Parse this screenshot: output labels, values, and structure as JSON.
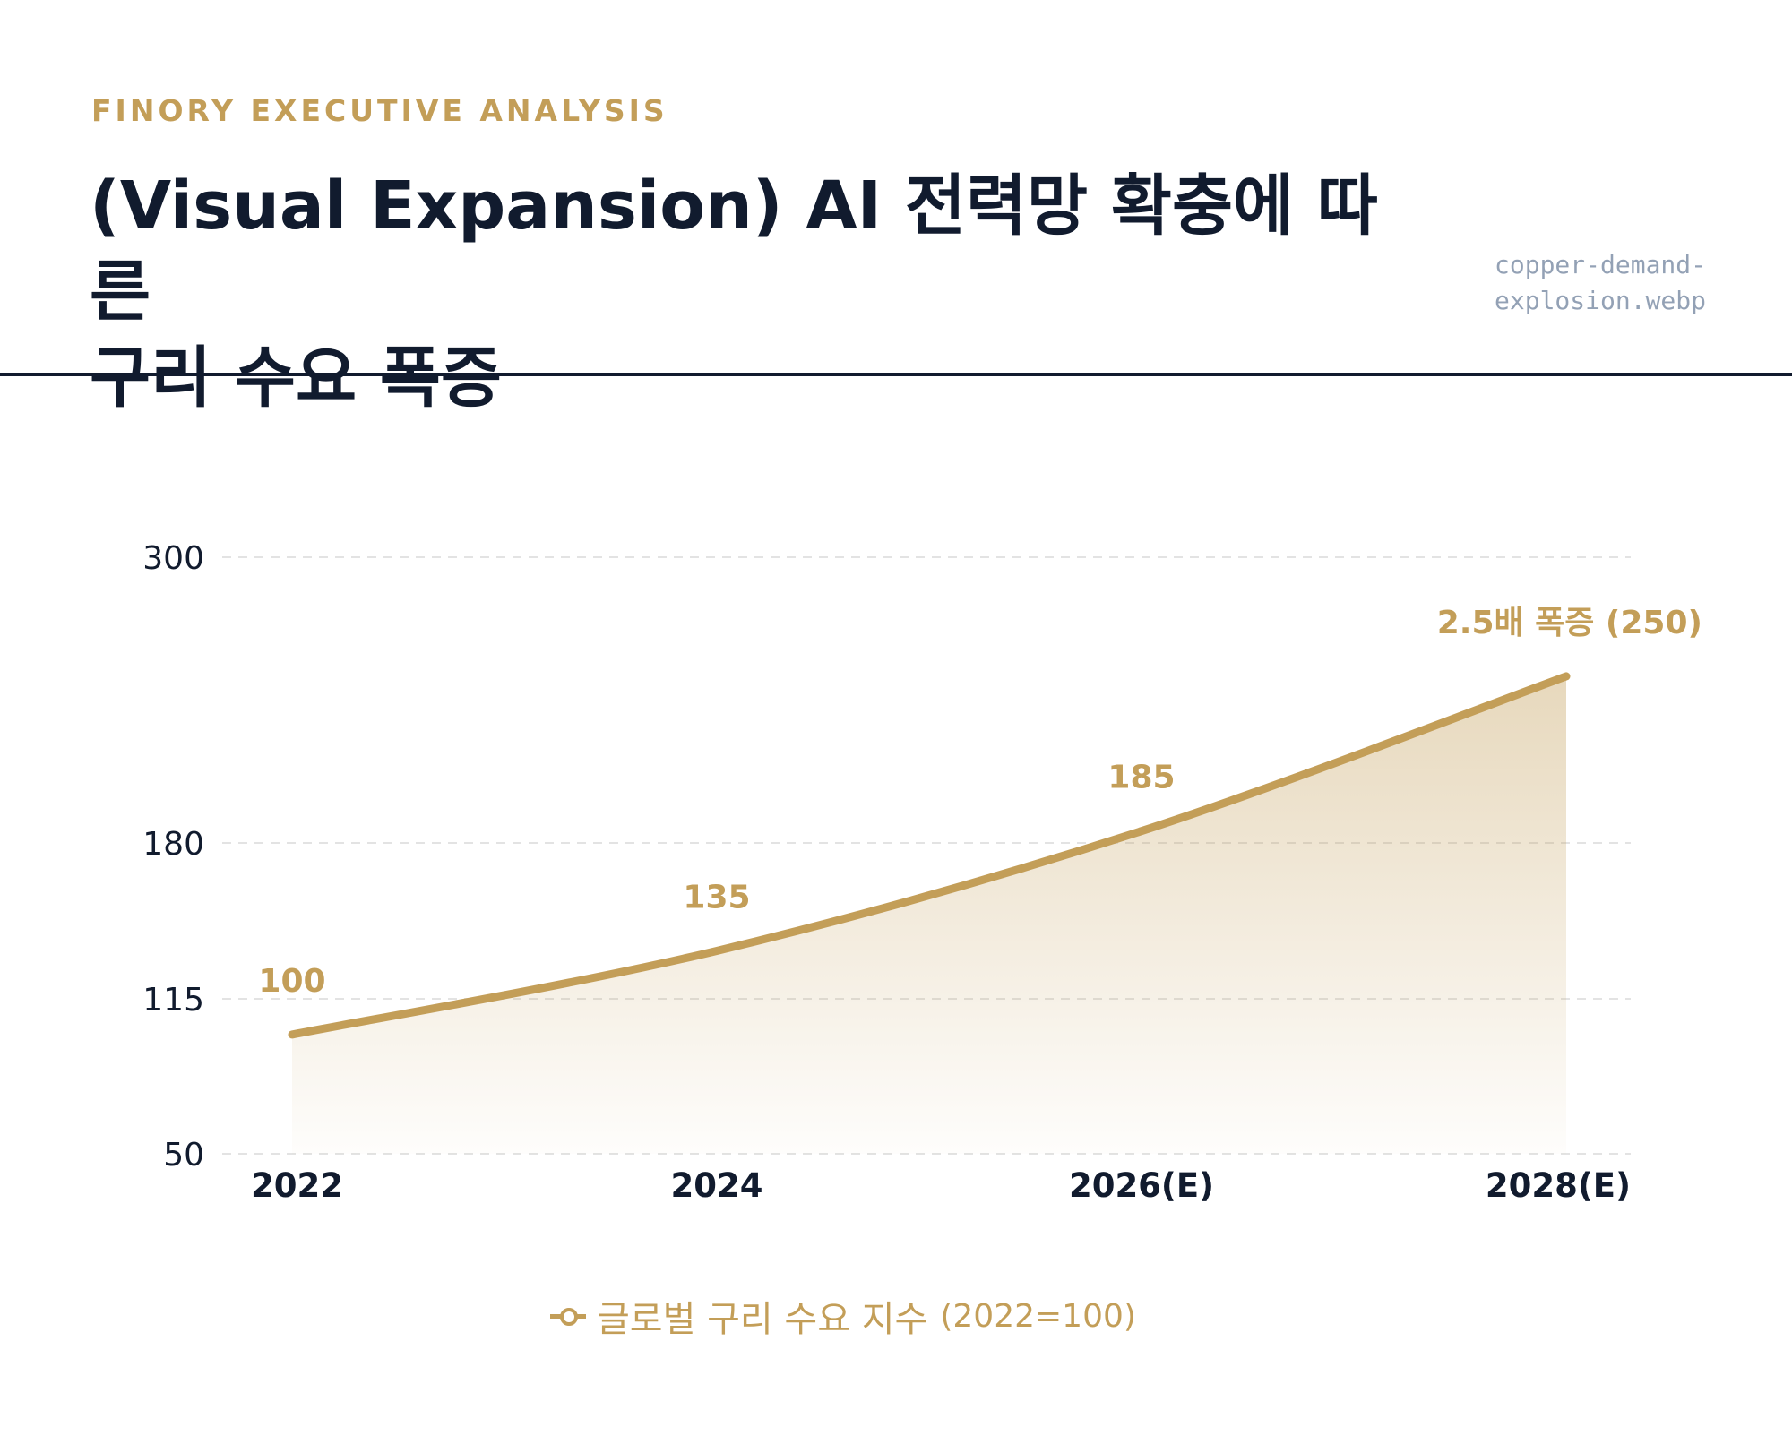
{
  "header": {
    "kicker": "FINORY EXECUTIVE ANALYSIS",
    "title_line1": "(Visual Expansion) AI 전력망 확충에 따른",
    "title_line2": "구리 수요 폭증",
    "filename_line1": "copper-demand-",
    "filename_line2": "explosion.webp"
  },
  "colors": {
    "accent": "#c39e58",
    "title": "#111b2e",
    "muted": "#93a1b5",
    "grid": "#e3e3e3"
  },
  "chart_data": {
    "type": "area",
    "categories": [
      "2022",
      "2024",
      "2026(E)",
      "2028(E)"
    ],
    "series": [
      {
        "name": "글로벌 구리 수요 지수 (2022=100)",
        "values": [
          100,
          135,
          185,
          250
        ],
        "data_labels": [
          "100",
          "135",
          "185",
          "2.5배 폭증 (250)"
        ]
      }
    ],
    "y_ticks": [
      50,
      115,
      180,
      300
    ],
    "ylim": [
      50,
      300
    ],
    "grid": true,
    "legend_position": "bottom-center"
  },
  "legend": {
    "main": "글로벌 구리 수요 지수",
    "unit": "(2022=100)"
  }
}
